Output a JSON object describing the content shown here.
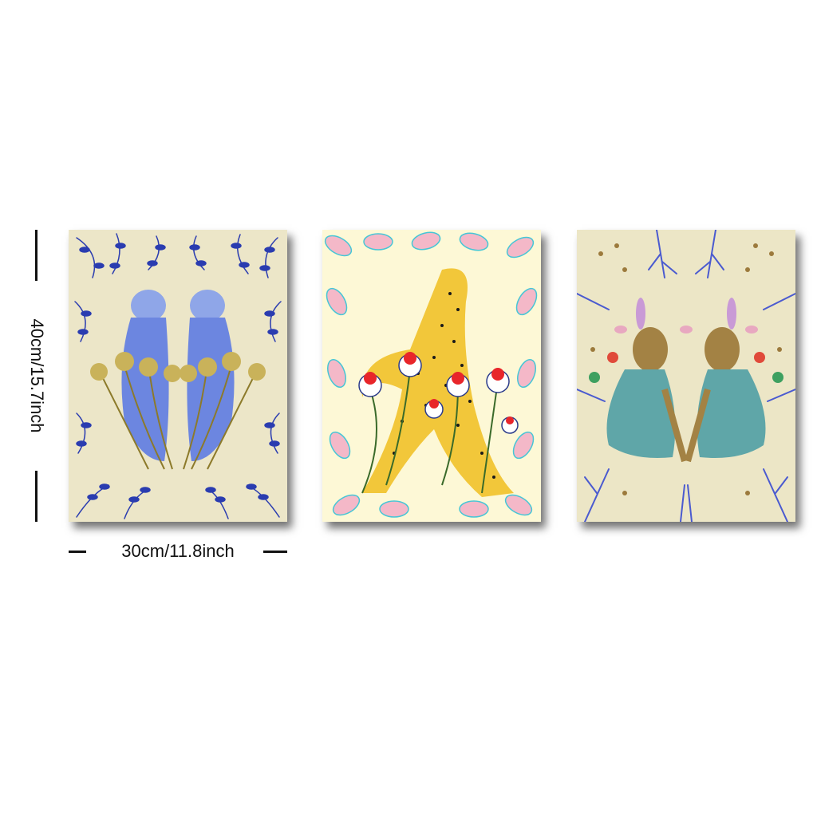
{
  "dimensions": {
    "height_label": "40cm/15.7inch",
    "width_label": "30cm/11.8inch"
  },
  "panels": [
    {
      "subject": "twin blue leopards among coneflowers",
      "colors": {
        "bg": "#ece6c8",
        "accent": "#2a3cb0",
        "flower": "#c9b25a"
      }
    },
    {
      "subject": "yellow cheetah with red coneflowers",
      "colors": {
        "bg": "#fdf8d6",
        "accent": "#f2c73a",
        "flower": "#e8262a",
        "leaf": "#f4b8c8"
      }
    },
    {
      "subject": "two hares with birds and butterflies",
      "colors": {
        "bg": "#ece6c6",
        "accent": "#9c7a3c",
        "branch": "#4a5ad0"
      }
    }
  ]
}
